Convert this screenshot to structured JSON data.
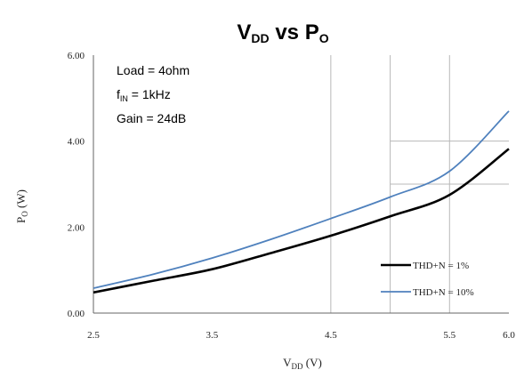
{
  "chart_data": {
    "type": "line",
    "title": {
      "main": "V",
      "main_sub": "DD",
      "mid": " vs P",
      "end_sub": "O"
    },
    "xlabel": {
      "main": "V",
      "sub": "DD",
      "unit": " (V)"
    },
    "ylabel": {
      "main": "P",
      "sub": "O",
      "unit": " (W)"
    },
    "xlim": [
      2.5,
      6.0
    ],
    "ylim": [
      0,
      6
    ],
    "x_ticks": [
      "2.5",
      "3.5",
      "4.5",
      "5.5",
      "6.0"
    ],
    "x_tick_values": [
      2.5,
      3.5,
      4.5,
      5.5,
      6.0
    ],
    "y_ticks": [
      "6.00",
      "4.00",
      "2.00",
      "0.00"
    ],
    "y_tick_values": [
      6,
      4,
      2,
      0
    ],
    "grid": {
      "vertical_x": [
        4.5,
        5.0,
        5.5
      ],
      "horizontal_y": [
        4,
        3
      ],
      "vertical_y_range": [
        0,
        6
      ],
      "horizontal_x_range": [
        5.0,
        6.0
      ]
    },
    "annotations": [
      {
        "main": "Load = 4ohm",
        "sub": ""
      },
      {
        "main": "f",
        "sub": "IN",
        "rest": " = 1kHz"
      },
      {
        "main": "Gain = 24dB",
        "sub": ""
      }
    ],
    "legend_position": "bottom-right",
    "series": [
      {
        "name": "THD+N = 1%",
        "color": "#000000",
        "x": [
          2.5,
          3.0,
          3.5,
          4.0,
          4.5,
          5.0,
          5.5,
          6.0
        ],
        "y": [
          0.48,
          0.75,
          1.02,
          1.4,
          1.8,
          2.25,
          2.75,
          3.82
        ]
      },
      {
        "name": "THD+N = 10%",
        "color": "#4f81bd",
        "x": [
          2.5,
          3.0,
          3.5,
          4.0,
          4.5,
          5.0,
          5.5,
          6.0
        ],
        "y": [
          0.58,
          0.9,
          1.28,
          1.72,
          2.2,
          2.7,
          3.3,
          4.7
        ]
      }
    ]
  }
}
